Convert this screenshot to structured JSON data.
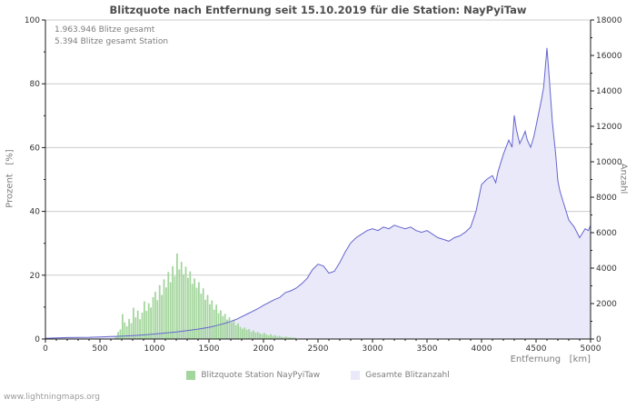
{
  "page": {
    "title": "Blitzquote nach Entfernung seit 15.10.2019 für die Station: NayPyiTaw",
    "annotations": [
      "1.963.946 Blitze gesamt",
      "5.394 Blitze gesamt Station"
    ],
    "watermark": "www.lightningmaps.org"
  },
  "colors": {
    "grid": "#cccccc",
    "axis": "#1a1a1a",
    "tick_text": "#333333",
    "bar": "#a3d69c",
    "area_fill": "#e9e9f9",
    "line": "#6565cf"
  },
  "chart_data": {
    "type": "mixed",
    "subtypes": [
      "bar",
      "area"
    ],
    "title": "Blitzquote nach Entfernung seit 15.10.2019 für die Station: NayPyiTaw",
    "xlabel": "Entfernung   [km]",
    "ylabel_left": "Prozent   [%]",
    "ylabel_right": "Anzahl",
    "xlim": [
      0,
      5000
    ],
    "left_ylim": [
      0,
      100
    ],
    "right_ylim": [
      0,
      18000
    ],
    "x_ticks": [
      0,
      500,
      1000,
      1500,
      2000,
      2500,
      3000,
      3500,
      4000,
      4500,
      5000
    ],
    "left_ticks": [
      0,
      20,
      40,
      60,
      80,
      100
    ],
    "right_ticks": [
      0,
      2000,
      4000,
      6000,
      8000,
      10000,
      12000,
      14000,
      16000,
      18000
    ],
    "grid": "horizontal",
    "legend": [
      {
        "label": "Blitzquote Station NayPyiTaw",
        "swatch": "bar",
        "axis": "left"
      },
      {
        "label": "Gesamte Blitzanzahl",
        "swatch": "area_fill",
        "axis": "right"
      }
    ],
    "bar_bin_width": 20,
    "bars_xy": [
      [
        650,
        1.0
      ],
      [
        670,
        2.2
      ],
      [
        690,
        3.0
      ],
      [
        710,
        7.8
      ],
      [
        730,
        5.2
      ],
      [
        750,
        4.0
      ],
      [
        770,
        6.3
      ],
      [
        790,
        5.0
      ],
      [
        810,
        9.8
      ],
      [
        830,
        6.8
      ],
      [
        850,
        8.9
      ],
      [
        870,
        6.2
      ],
      [
        890,
        8.3
      ],
      [
        910,
        11.8
      ],
      [
        930,
        8.8
      ],
      [
        950,
        11.2
      ],
      [
        970,
        9.9
      ],
      [
        990,
        13.1
      ],
      [
        1010,
        14.8
      ],
      [
        1030,
        12.2
      ],
      [
        1050,
        16.9
      ],
      [
        1070,
        13.8
      ],
      [
        1090,
        18.7
      ],
      [
        1110,
        16.2
      ],
      [
        1130,
        21.0
      ],
      [
        1150,
        17.8
      ],
      [
        1170,
        22.8
      ],
      [
        1190,
        19.7
      ],
      [
        1210,
        26.8
      ],
      [
        1230,
        21.8
      ],
      [
        1250,
        24.2
      ],
      [
        1270,
        20.3
      ],
      [
        1290,
        22.7
      ],
      [
        1310,
        19.2
      ],
      [
        1330,
        21.2
      ],
      [
        1350,
        17.3
      ],
      [
        1370,
        19.0
      ],
      [
        1390,
        16.1
      ],
      [
        1410,
        17.8
      ],
      [
        1430,
        14.2
      ],
      [
        1450,
        15.9
      ],
      [
        1470,
        12.3
      ],
      [
        1490,
        13.8
      ],
      [
        1510,
        10.9
      ],
      [
        1530,
        12.1
      ],
      [
        1550,
        9.2
      ],
      [
        1570,
        10.8
      ],
      [
        1590,
        8.1
      ],
      [
        1610,
        9.0
      ],
      [
        1630,
        7.2
      ],
      [
        1650,
        7.9
      ],
      [
        1670,
        6.1
      ],
      [
        1690,
        6.8
      ],
      [
        1710,
        5.2
      ],
      [
        1730,
        5.8
      ],
      [
        1750,
        4.3
      ],
      [
        1770,
        4.9
      ],
      [
        1790,
        3.8
      ],
      [
        1810,
        3.2
      ],
      [
        1830,
        3.6
      ],
      [
        1850,
        2.9
      ],
      [
        1870,
        3.1
      ],
      [
        1890,
        2.3
      ],
      [
        1910,
        2.7
      ],
      [
        1930,
        2.0
      ],
      [
        1950,
        2.2
      ],
      [
        1970,
        1.8
      ],
      [
        1990,
        1.5
      ],
      [
        2010,
        1.9
      ],
      [
        2030,
        1.4
      ],
      [
        2050,
        1.1
      ],
      [
        2070,
        1.5
      ],
      [
        2090,
        1.0
      ],
      [
        2110,
        1.2
      ],
      [
        2130,
        0.8
      ],
      [
        2150,
        1.0
      ],
      [
        2170,
        0.7
      ],
      [
        2190,
        0.6
      ],
      [
        2210,
        0.8
      ],
      [
        2230,
        0.5
      ],
      [
        2250,
        0.6
      ],
      [
        2270,
        0.4
      ],
      [
        2290,
        0.5
      ]
    ],
    "counts_xy": [
      [
        0,
        40
      ],
      [
        100,
        60
      ],
      [
        200,
        80
      ],
      [
        300,
        90
      ],
      [
        400,
        100
      ],
      [
        500,
        120
      ],
      [
        600,
        140
      ],
      [
        700,
        160
      ],
      [
        800,
        190
      ],
      [
        900,
        230
      ],
      [
        1000,
        280
      ],
      [
        1100,
        340
      ],
      [
        1200,
        400
      ],
      [
        1300,
        470
      ],
      [
        1400,
        560
      ],
      [
        1500,
        660
      ],
      [
        1550,
        730
      ],
      [
        1600,
        810
      ],
      [
        1650,
        890
      ],
      [
        1700,
        990
      ],
      [
        1750,
        1110
      ],
      [
        1800,
        1260
      ],
      [
        1850,
        1410
      ],
      [
        1900,
        1560
      ],
      [
        1950,
        1720
      ],
      [
        2000,
        1900
      ],
      [
        2050,
        2060
      ],
      [
        2100,
        2220
      ],
      [
        2150,
        2350
      ],
      [
        2200,
        2620
      ],
      [
        2250,
        2720
      ],
      [
        2300,
        2870
      ],
      [
        2350,
        3120
      ],
      [
        2400,
        3420
      ],
      [
        2450,
        3920
      ],
      [
        2500,
        4220
      ],
      [
        2550,
        4120
      ],
      [
        2600,
        3720
      ],
      [
        2650,
        3820
      ],
      [
        2700,
        4320
      ],
      [
        2750,
        4920
      ],
      [
        2800,
        5420
      ],
      [
        2850,
        5720
      ],
      [
        2900,
        5920
      ],
      [
        2950,
        6120
      ],
      [
        3000,
        6220
      ],
      [
        3050,
        6120
      ],
      [
        3100,
        6320
      ],
      [
        3150,
        6220
      ],
      [
        3200,
        6420
      ],
      [
        3250,
        6320
      ],
      [
        3300,
        6220
      ],
      [
        3350,
        6320
      ],
      [
        3400,
        6120
      ],
      [
        3450,
        6020
      ],
      [
        3500,
        6120
      ],
      [
        3550,
        5920
      ],
      [
        3600,
        5720
      ],
      [
        3650,
        5620
      ],
      [
        3700,
        5520
      ],
      [
        3750,
        5720
      ],
      [
        3800,
        5820
      ],
      [
        3850,
        6020
      ],
      [
        3900,
        6320
      ],
      [
        3950,
        7220
      ],
      [
        4000,
        8720
      ],
      [
        4050,
        9020
      ],
      [
        4100,
        9220
      ],
      [
        4130,
        8820
      ],
      [
        4150,
        9420
      ],
      [
        4200,
        10420
      ],
      [
        4250,
        11220
      ],
      [
        4280,
        10820
      ],
      [
        4300,
        12620
      ],
      [
        4320,
        11820
      ],
      [
        4350,
        11020
      ],
      [
        4380,
        11420
      ],
      [
        4400,
        11720
      ],
      [
        4420,
        11220
      ],
      [
        4450,
        10820
      ],
      [
        4480,
        11420
      ],
      [
        4500,
        12020
      ],
      [
        4520,
        12620
      ],
      [
        4550,
        13520
      ],
      [
        4570,
        14220
      ],
      [
        4600,
        16420
      ],
      [
        4620,
        14820
      ],
      [
        4650,
        12220
      ],
      [
        4680,
        10420
      ],
      [
        4700,
        8920
      ],
      [
        4720,
        8320
      ],
      [
        4750,
        7720
      ],
      [
        4800,
        6720
      ],
      [
        4850,
        6320
      ],
      [
        4900,
        5720
      ],
      [
        4920,
        5920
      ],
      [
        4950,
        6220
      ],
      [
        4980,
        6120
      ],
      [
        5000,
        6420
      ]
    ]
  }
}
